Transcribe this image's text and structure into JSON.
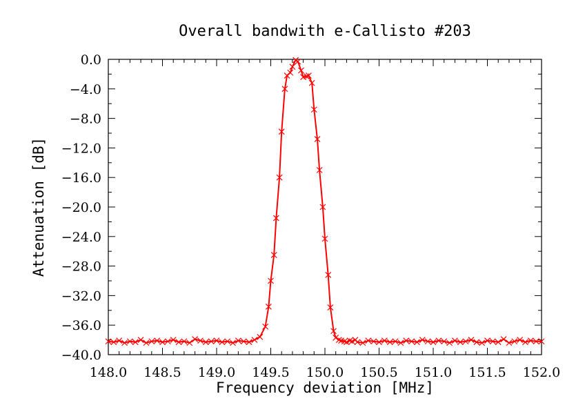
{
  "chart_data": {
    "type": "line",
    "title": "Overall bandwith e-Callisto #203",
    "xlabel": "Frequency deviation [MHz]",
    "ylabel": "Attenuation [dB]",
    "xlim": [
      148.0,
      152.0
    ],
    "ylim": [
      -40.0,
      0.0
    ],
    "xticks": [
      "148.0",
      "148.5",
      "149.0",
      "149.5",
      "150.0",
      "150.5",
      "151.0",
      "151.5",
      "152.0"
    ],
    "yticks": [
      "0.0",
      "-4.0",
      "-8.0",
      "-12.0",
      "-16.0",
      "-20.0",
      "-24.0",
      "-28.0",
      "-32.0",
      "-36.0",
      "-40.0"
    ],
    "grid": false,
    "legend": "none",
    "line_color": "#ff0000",
    "marker": "x",
    "series": [
      {
        "x": [
          148.0,
          148.05,
          148.1,
          148.15,
          148.2,
          148.25,
          148.3,
          148.35,
          148.4,
          148.45,
          148.5,
          148.55,
          148.6,
          148.65,
          148.7,
          148.75,
          148.8,
          148.85,
          148.9,
          148.95,
          149.0,
          149.05,
          149.1,
          149.15,
          149.2,
          149.25,
          149.3,
          149.35,
          149.4,
          149.45,
          149.48,
          149.5,
          149.53,
          149.55,
          149.58,
          149.6,
          149.63,
          149.65,
          149.68,
          149.7,
          149.73,
          149.75,
          149.78,
          149.8,
          149.83,
          149.85,
          149.88,
          149.9,
          149.93,
          149.95,
          149.98,
          150.0,
          150.03,
          150.05,
          150.08,
          150.1,
          150.13,
          150.15,
          150.18,
          150.2,
          150.23,
          150.25,
          150.28,
          150.3,
          150.35,
          150.4,
          150.45,
          150.5,
          150.55,
          150.6,
          150.65,
          150.7,
          150.75,
          150.8,
          150.85,
          150.9,
          150.95,
          151.0,
          151.05,
          151.1,
          151.15,
          151.2,
          151.25,
          151.3,
          151.35,
          151.4,
          151.45,
          151.5,
          151.55,
          151.6,
          151.65,
          151.7,
          151.75,
          151.8,
          151.85,
          151.9,
          151.95,
          152.0
        ],
        "y": [
          -38.2,
          -38.3,
          -38.1,
          -38.4,
          -38.2,
          -38.3,
          -38.0,
          -38.4,
          -38.2,
          -38.1,
          -38.3,
          -38.2,
          -38.0,
          -38.3,
          -38.2,
          -38.4,
          -37.9,
          -38.1,
          -38.3,
          -38.2,
          -38.1,
          -38.3,
          -38.2,
          -38.4,
          -38.1,
          -38.2,
          -38.3,
          -38.0,
          -37.6,
          -36.2,
          -33.5,
          -30.0,
          -26.5,
          -21.5,
          -16.0,
          -9.8,
          -4.0,
          -2.2,
          -1.8,
          -1.0,
          -0.1,
          -0.3,
          -1.5,
          -2.4,
          -2.3,
          -2.2,
          -3.2,
          -6.8,
          -10.8,
          -15.0,
          -20.0,
          -24.3,
          -29.2,
          -33.6,
          -36.8,
          -37.7,
          -38.0,
          -38.1,
          -38.2,
          -38.3,
          -38.1,
          -38.2,
          -38.0,
          -38.3,
          -38.4,
          -38.1,
          -38.2,
          -38.3,
          -38.1,
          -38.3,
          -38.2,
          -38.4,
          -38.1,
          -38.2,
          -38.3,
          -38.0,
          -38.2,
          -38.3,
          -38.1,
          -38.2,
          -38.4,
          -38.1,
          -38.3,
          -38.2,
          -38.0,
          -38.3,
          -38.4,
          -38.1,
          -38.2,
          -38.3,
          -37.9,
          -38.4,
          -38.2,
          -38.0,
          -38.3,
          -38.1,
          -38.2,
          -38.2
        ]
      }
    ]
  }
}
